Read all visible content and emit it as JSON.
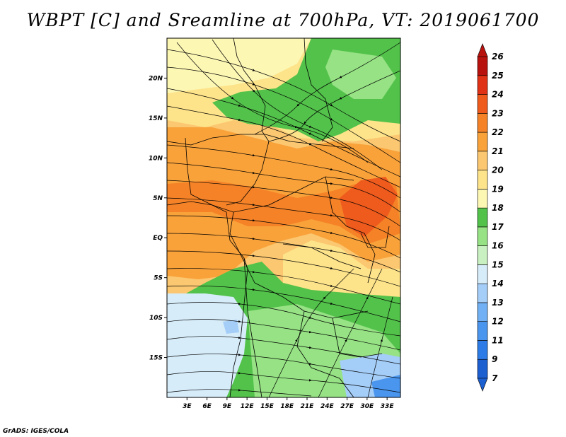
{
  "title": "WBPT [C] and Sreamline at 700hPa, VT: 2019061700",
  "footer": "GrADS: IGES/COLA",
  "x_axis": {
    "ticks": [
      {
        "value": 3,
        "label": "3E"
      },
      {
        "value": 6,
        "label": "6E"
      },
      {
        "value": 9,
        "label": "9E"
      },
      {
        "value": 12,
        "label": "12E"
      },
      {
        "value": 15,
        "label": "15E"
      },
      {
        "value": 18,
        "label": "18E"
      },
      {
        "value": 21,
        "label": "21E"
      },
      {
        "value": 24,
        "label": "24E"
      },
      {
        "value": 27,
        "label": "27E"
      },
      {
        "value": 30,
        "label": "30E"
      },
      {
        "value": 33,
        "label": "33E"
      }
    ],
    "range": [
      0,
      35
    ]
  },
  "y_axis": {
    "ticks": [
      {
        "value": 20,
        "label": "20N"
      },
      {
        "value": 15,
        "label": "15N"
      },
      {
        "value": 10,
        "label": "10N"
      },
      {
        "value": 5,
        "label": "5N"
      },
      {
        "value": 0,
        "label": "EQ"
      },
      {
        "value": -5,
        "label": "5S"
      },
      {
        "value": -10,
        "label": "10S"
      },
      {
        "value": -15,
        "label": "15S"
      }
    ],
    "range": [
      -20,
      25
    ]
  },
  "colorbar": {
    "labels": [
      "7",
      "9",
      "11",
      "12",
      "13",
      "14",
      "15",
      "16",
      "17",
      "18",
      "19",
      "20",
      "21",
      "22",
      "23",
      "24",
      "25",
      "26"
    ],
    "colors": [
      "#1c5fd0",
      "#2c7be6",
      "#4a95ee",
      "#71b0f4",
      "#a4cdf7",
      "#d6ecf9",
      "#c8f0c0",
      "#96e284",
      "#52c24a",
      "#fdf7b4",
      "#fde38a",
      "#fbc770",
      "#f9a23a",
      "#f58227",
      "#ef5a1d",
      "#e03216",
      "#b8120e"
    ]
  },
  "colors": {
    "cold": "#d6ecf9",
    "cool": "#96e284",
    "green": "#52c24a",
    "warm": "#fde38a",
    "hot": "#f9a23a",
    "hottest": "#ef5a1d"
  }
}
